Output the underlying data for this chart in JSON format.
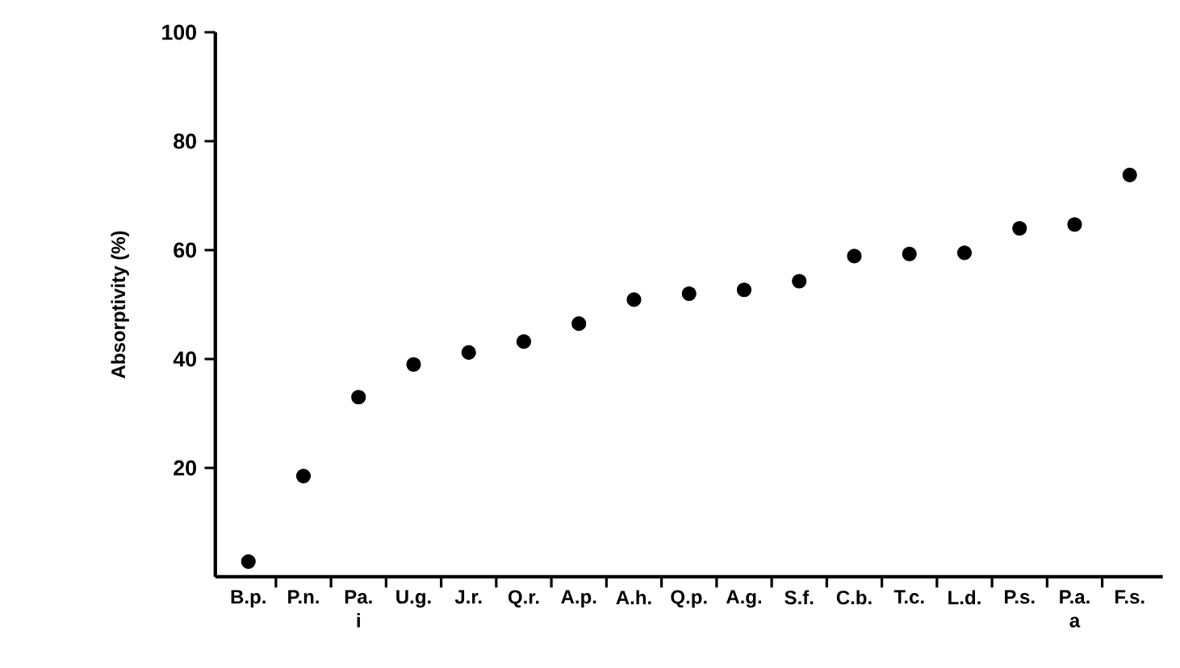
{
  "chart_data": {
    "type": "scatter",
    "ylabel": "Absorptivity (%)",
    "categories": [
      "B.p.",
      "P.n.",
      "Pa.\ni",
      "U.g.",
      "J.r.",
      "Q.r.",
      "A.p.",
      "A.h.",
      "Q.p.",
      "A.g.",
      "S.f.",
      "C.b.",
      "T.c.",
      "L.d.",
      "P.s.",
      "P.a.\na",
      "F.s."
    ],
    "series": [
      {
        "color": "#000000",
        "values": [
          2.8,
          18.5,
          33,
          39,
          41.2,
          43.2,
          46.5,
          50.9,
          52,
          52.7,
          54.3,
          58.9,
          59.3,
          59.5,
          64,
          64.7,
          73.8
        ]
      }
    ],
    "ylim": [
      0,
      100
    ],
    "yticks": [
      20,
      40,
      60,
      80,
      100
    ],
    "grid": false,
    "marker": "circle"
  }
}
